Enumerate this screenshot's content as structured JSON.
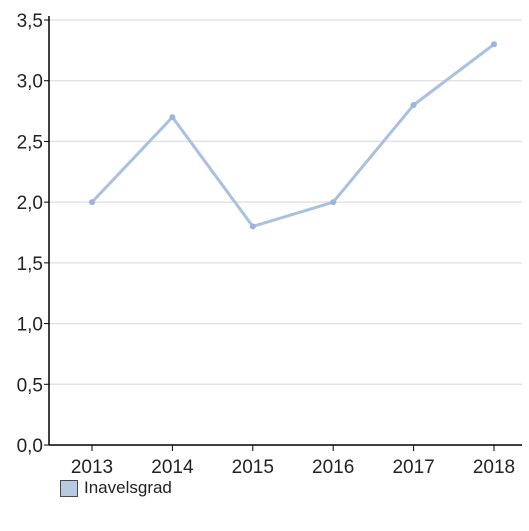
{
  "chart_data": {
    "type": "line",
    "x": [
      "2013",
      "2014",
      "2015",
      "2016",
      "2017",
      "2018"
    ],
    "series": [
      {
        "name": "Inavelsgrad",
        "values": [
          2.0,
          2.7,
          1.8,
          2.0,
          2.8,
          3.3
        ]
      }
    ],
    "ylim": [
      0,
      3.5
    ],
    "yticks": [
      "0,0",
      "0,5",
      "1,0",
      "1,5",
      "2,0",
      "2,5",
      "3,0",
      "3,5"
    ],
    "title": "",
    "xlabel": "",
    "ylabel": "",
    "grid": true,
    "legend_position": "bottom-left",
    "colors": {
      "line": "#a9c1de",
      "marker": "#9bb6d8",
      "swatch_fill": "#b6cbe3",
      "grid": "#e3e3e3",
      "axis": "#000000"
    }
  },
  "legend": {
    "label": "Inavelsgrad"
  }
}
